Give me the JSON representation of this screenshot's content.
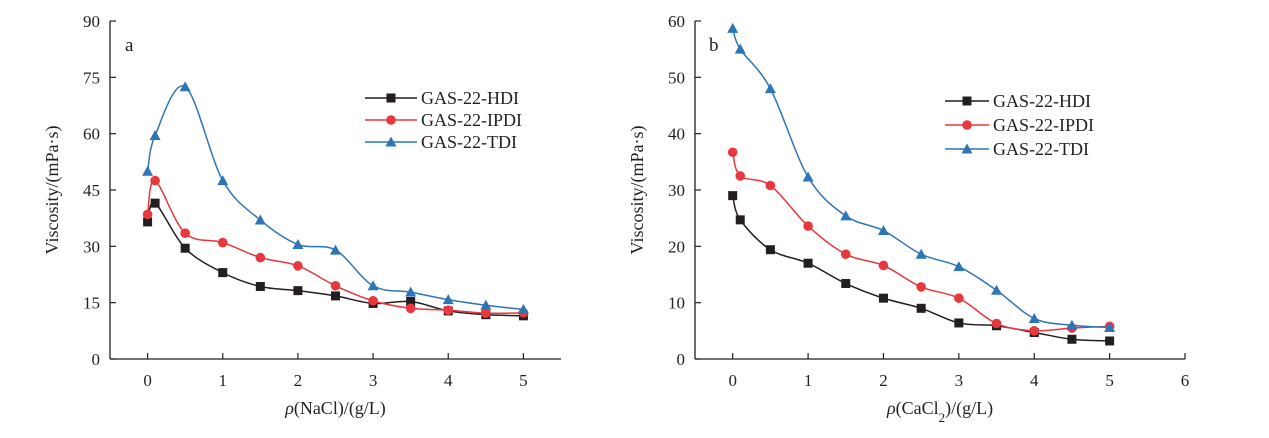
{
  "chart_data": [
    {
      "type": "line",
      "panel_label": "a",
      "xlabel_prefix": "ρ",
      "xlabel_parts": [
        "(NaCl)/(g/L)"
      ],
      "ylabel": "Viscosity/(mPa·s)",
      "xlim": [
        -0.5,
        5.5
      ],
      "ylim": [
        0,
        90
      ],
      "xticks": [
        0,
        1,
        2,
        3,
        4,
        5
      ],
      "yticks": [
        0,
        15,
        30,
        45,
        60,
        75,
        90
      ],
      "grid": false,
      "legend_position": "upper-right",
      "series": [
        {
          "name": "GAS-22-HDI",
          "marker": "square",
          "color": "#231f20",
          "x": [
            0,
            0.1,
            0.5,
            1,
            1.5,
            2,
            2.5,
            3,
            3.5,
            4,
            4.5,
            5
          ],
          "y": [
            36.5,
            41.5,
            29.5,
            23,
            19.3,
            18.2,
            16.8,
            14.8,
            15.3,
            12.8,
            11.8,
            11.5
          ]
        },
        {
          "name": "GAS-22-IPDI",
          "marker": "circle",
          "color": "#e8383d",
          "x": [
            0,
            0.1,
            0.5,
            1,
            1.5,
            2,
            2.5,
            3,
            3.5,
            4,
            4.5,
            5
          ],
          "y": [
            38.5,
            47.5,
            33.5,
            31,
            27,
            24.8,
            19.5,
            15.5,
            13.5,
            13,
            12.2,
            12.3
          ]
        },
        {
          "name": "GAS-22-TDI",
          "marker": "triangle",
          "color": "#2e75b6",
          "x": [
            0,
            0.1,
            0.5,
            1,
            1.5,
            2,
            2.5,
            3,
            3.5,
            4,
            4.5,
            5
          ],
          "y": [
            50,
            59.5,
            72.5,
            47.5,
            37,
            30.5,
            29,
            19.5,
            17.8,
            15.8,
            14.3,
            13.2
          ]
        }
      ]
    },
    {
      "type": "line",
      "panel_label": "b",
      "xlabel_prefix": "ρ",
      "xlabel_parts": [
        "(CaCl",
        "2",
        ")/(g/L)"
      ],
      "ylabel": "Viscosity/(mPa·s)",
      "xlim": [
        -0.5,
        6
      ],
      "ylim": [
        0,
        60
      ],
      "xticks": [
        0,
        1,
        2,
        3,
        4,
        5,
        6
      ],
      "yticks": [
        0,
        10,
        20,
        30,
        40,
        50,
        60
      ],
      "grid": false,
      "legend_position": "upper-right",
      "series": [
        {
          "name": "GAS-22-HDI",
          "marker": "square",
          "color": "#231f20",
          "x": [
            0,
            0.1,
            0.5,
            1,
            1.5,
            2,
            2.5,
            3,
            3.5,
            4,
            4.5,
            5
          ],
          "y": [
            29,
            24.7,
            19.4,
            17,
            13.4,
            10.8,
            9,
            6.4,
            5.9,
            4.7,
            3.5,
            3.2
          ]
        },
        {
          "name": "GAS-22-IPDI",
          "marker": "circle",
          "color": "#e8383d",
          "x": [
            0,
            0.1,
            0.5,
            1,
            1.5,
            2,
            2.5,
            3,
            3.5,
            4,
            4.5,
            5
          ],
          "y": [
            36.7,
            32.5,
            30.8,
            23.6,
            18.6,
            16.6,
            12.8,
            10.8,
            6.3,
            5,
            5.5,
            5.8
          ]
        },
        {
          "name": "GAS-22-TDI",
          "marker": "triangle",
          "color": "#2e75b6",
          "x": [
            0,
            0.1,
            0.5,
            1,
            1.5,
            2,
            2.5,
            3,
            3.5,
            4,
            4.5,
            5
          ],
          "y": [
            58.7,
            55,
            48,
            32.3,
            25.4,
            22.8,
            18.6,
            16.4,
            12.2,
            7.2,
            6,
            5.6
          ]
        }
      ]
    }
  ]
}
